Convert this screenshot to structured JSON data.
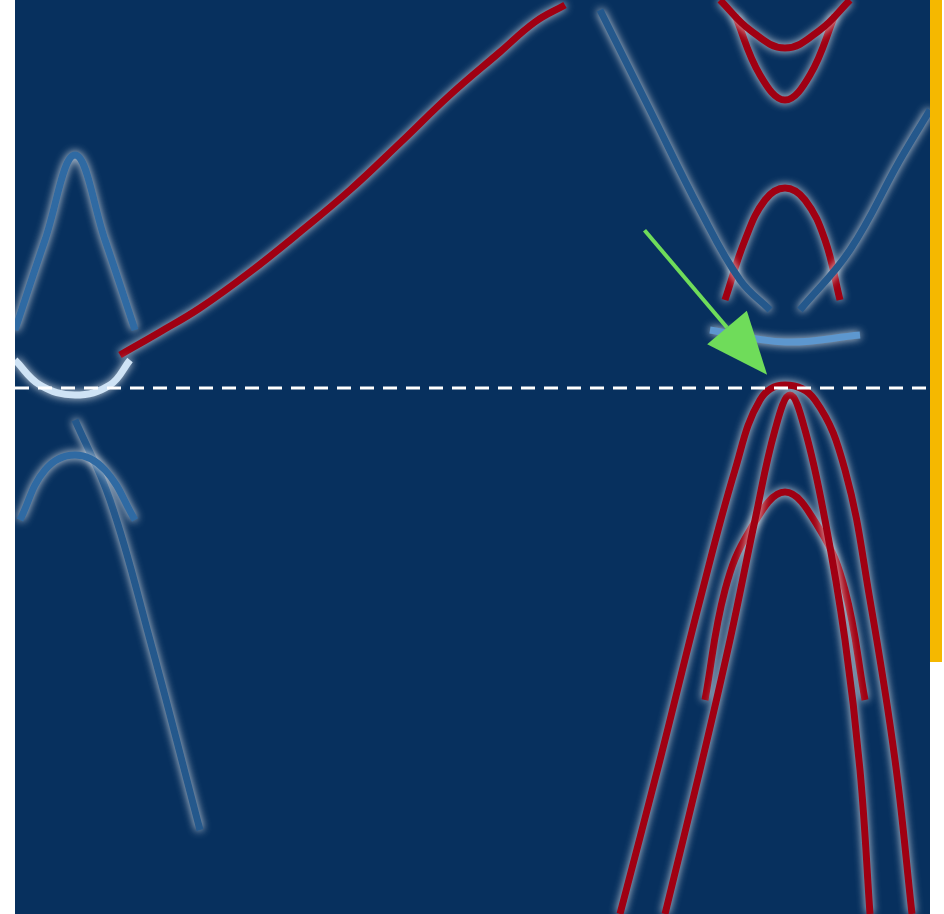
{
  "chart_data": {
    "type": "line",
    "xlim": [
      15,
      930
    ],
    "ylim": [
      0,
      914
    ],
    "tick_labels": false,
    "grid": false,
    "marker": "none",
    "series": [
      {
        "color": "#ffffff",
        "line_style": "dashed",
        "x": [
          15,
          930
        ],
        "values": [
          526,
          526
        ]
      },
      {
        "color": "#2f6aa3",
        "x": [
          15,
          45,
          75,
          105,
          135
        ],
        "values": [
          584,
          674,
          759,
          674,
          584
        ]
      },
      {
        "color": "#2f6aa3",
        "x": [
          20,
          45,
          75,
          105,
          135
        ],
        "values": [
          394,
          444,
          459,
          444,
          394
        ]
      },
      {
        "color": "#24588c",
        "x": [
          75,
          110,
          150,
          200
        ],
        "values": [
          494,
          414,
          274,
          84
        ]
      },
      {
        "color": "#24588c",
        "x": [
          600,
          650,
          700,
          740,
          770
        ],
        "values": [
          904,
          804,
          704,
          634,
          604
        ]
      },
      {
        "color": "#24588c",
        "x": [
          800,
          850,
          900,
          930
        ],
        "values": [
          604,
          664,
          754,
          804
        ]
      },
      {
        "color": "#5d97cf",
        "x": [
          710,
          785,
          860
        ],
        "values": [
          584,
          572,
          579
        ]
      },
      {
        "color": "#cfe3f5",
        "x": [
          15,
          40,
          75,
          110,
          130
        ],
        "values": [
          554,
          529,
          519,
          529,
          554
        ]
      },
      {
        "color": "#a00012",
        "x": [
          120,
          160,
          200,
          250,
          300,
          350,
          400,
          450,
          500,
          535,
          565
        ],
        "values": [
          559,
          582,
          606,
          642,
          682,
          724,
          771,
          819,
          862,
          892,
          909
        ]
      },
      {
        "color": "#a00012",
        "x": [
          620,
          660,
          700,
          735,
          760,
          785,
          815,
          845,
          870,
          895,
          912
        ],
        "values": [
          0,
          154,
          314,
          444,
          514,
          529,
          514,
          444,
          314,
          154,
          0
        ]
      },
      {
        "color": "#a00012",
        "x": [
          665,
          700,
          730,
          755,
          775,
          790,
          805,
          825,
          845,
          860,
          870
        ],
        "values": [
          0,
          144,
          274,
          394,
          484,
          519,
          484,
          394,
          274,
          144,
          0
        ]
      },
      {
        "color": "#a00012",
        "x": [
          705,
          725,
          750,
          785,
          820,
          845,
          865
        ],
        "values": [
          214,
          324,
          384,
          422,
          384,
          324,
          214
        ]
      },
      {
        "color": "#a00012",
        "x": [
          725,
          745,
          765,
          785,
          805,
          825,
          840
        ],
        "values": [
          614,
          674,
          714,
          726,
          714,
          674,
          614
        ]
      },
      {
        "color": "#a00012",
        "x": [
          720,
          750,
          785,
          820,
          850
        ],
        "values": [
          914,
          884,
          866,
          884,
          914
        ]
      },
      {
        "color": "#a00012",
        "x": [
          735,
          760,
          785,
          810,
          835
        ],
        "values": [
          899,
          839,
          814,
          839,
          899
        ]
      }
    ]
  }
}
